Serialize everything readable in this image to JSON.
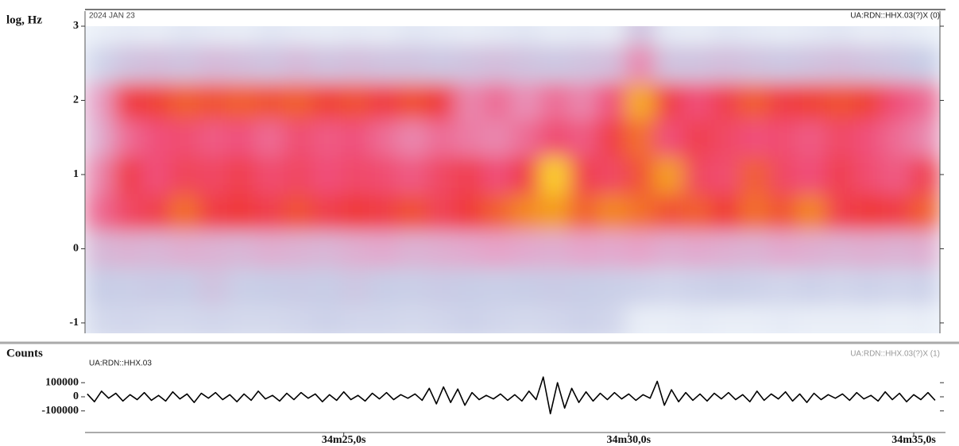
{
  "chart_data": [
    {
      "type": "heatmap",
      "y_label": "log, Hz",
      "date_label": "2024 JAN 23",
      "channel_label": "UA:RDN::HHX.03(?)X (0)",
      "xlim": [
        20.46,
        35.46
      ],
      "ylim": [
        -1.14,
        3
      ],
      "yticks": [
        3,
        2,
        1,
        0,
        -1
      ],
      "zlim": [
        0,
        1
      ],
      "colorscale": [
        [
          0,
          "#f4f9fd"
        ],
        [
          0.25,
          "#c8cde6"
        ],
        [
          0.45,
          "#e6a3c8"
        ],
        [
          0.6,
          "#f0507a"
        ],
        [
          0.75,
          "#f03a3a"
        ],
        [
          0.88,
          "#f5a020"
        ],
        [
          1,
          "#ffee30"
        ]
      ],
      "x": [
        20.71,
        21.21,
        21.71,
        22.21,
        22.71,
        23.21,
        23.71,
        24.21,
        24.71,
        25.21,
        25.71,
        26.21,
        26.71,
        27.21,
        27.71,
        28.21,
        28.71,
        29.21,
        29.71,
        30.21,
        30.71,
        31.21,
        31.71,
        32.21,
        32.71,
        33.21,
        33.71,
        34.21,
        34.71,
        35.21
      ],
      "y": [
        -1,
        -0.5,
        0,
        0.5,
        1,
        1.5,
        2,
        2.5,
        3
      ],
      "z": [
        [
          0.18,
          0.2,
          0.18,
          0.18,
          0.2,
          0.18,
          0.18,
          0.2,
          0.22,
          0.2,
          0.2,
          0.18,
          0.2,
          0.22,
          0.2,
          0.18,
          0.2,
          0.22,
          0.2,
          0.06,
          0.06,
          0.08,
          0.06,
          0.06,
          0.08,
          0.06,
          0.06,
          0.06,
          0.05,
          0.06
        ],
        [
          0.25,
          0.24,
          0.26,
          0.25,
          0.3,
          0.24,
          0.25,
          0.26,
          0.25,
          0.28,
          0.25,
          0.24,
          0.26,
          0.25,
          0.24,
          0.25,
          0.26,
          0.25,
          0.24,
          0.22,
          0.2,
          0.22,
          0.24,
          0.22,
          0.2,
          0.22,
          0.2,
          0.22,
          0.2,
          0.22
        ],
        [
          0.35,
          0.38,
          0.36,
          0.4,
          0.38,
          0.36,
          0.4,
          0.38,
          0.36,
          0.4,
          0.42,
          0.38,
          0.4,
          0.42,
          0.45,
          0.42,
          0.4,
          0.44,
          0.42,
          0.45,
          0.4,
          0.42,
          0.4,
          0.38,
          0.42,
          0.4,
          0.38,
          0.4,
          0.38,
          0.4
        ],
        [
          0.55,
          0.65,
          0.7,
          0.82,
          0.72,
          0.75,
          0.7,
          0.78,
          0.7,
          0.75,
          0.72,
          0.78,
          0.68,
          0.75,
          0.8,
          0.85,
          0.88,
          0.8,
          0.85,
          0.82,
          0.78,
          0.8,
          0.75,
          0.82,
          0.78,
          0.85,
          0.7,
          0.75,
          0.72,
          0.8
        ],
        [
          0.5,
          0.72,
          0.6,
          0.68,
          0.65,
          0.7,
          0.62,
          0.66,
          0.6,
          0.64,
          0.62,
          0.58,
          0.65,
          0.7,
          0.6,
          0.72,
          0.96,
          0.7,
          0.65,
          0.78,
          0.88,
          0.66,
          0.62,
          0.8,
          0.65,
          0.6,
          0.7,
          0.62,
          0.58,
          0.7
        ],
        [
          0.4,
          0.55,
          0.6,
          0.62,
          0.58,
          0.6,
          0.55,
          0.62,
          0.58,
          0.6,
          0.55,
          0.5,
          0.55,
          0.52,
          0.5,
          0.55,
          0.62,
          0.58,
          0.72,
          0.82,
          0.6,
          0.7,
          0.65,
          0.6,
          0.62,
          0.58,
          0.65,
          0.6,
          0.55,
          0.5
        ],
        [
          0.45,
          0.72,
          0.76,
          0.8,
          0.78,
          0.8,
          0.78,
          0.8,
          0.76,
          0.78,
          0.72,
          0.78,
          0.74,
          0.5,
          0.55,
          0.48,
          0.55,
          0.5,
          0.6,
          0.9,
          0.72,
          0.6,
          0.7,
          0.8,
          0.72,
          0.76,
          0.78,
          0.76,
          0.6,
          0.55
        ],
        [
          0.2,
          0.3,
          0.32,
          0.3,
          0.34,
          0.32,
          0.3,
          0.34,
          0.3,
          0.32,
          0.3,
          0.3,
          0.28,
          0.3,
          0.32,
          0.3,
          0.28,
          0.3,
          0.32,
          0.5,
          0.3,
          0.3,
          0.32,
          0.3,
          0.28,
          0.3,
          0.32,
          0.3,
          0.28,
          0.25
        ],
        [
          0.05,
          0.08,
          0.06,
          0.1,
          0.08,
          0.06,
          0.1,
          0.08,
          0.06,
          0.08,
          0.06,
          0.1,
          0.08,
          0.06,
          0.08,
          0.1,
          0.06,
          0.08,
          0.06,
          0.3,
          0.08,
          0.06,
          0.1,
          0.08,
          0.06,
          0.08,
          0.1,
          0.06,
          0.08,
          0.05
        ]
      ]
    },
    {
      "type": "line",
      "y_label": "Counts",
      "station_label": "UA:RDN::HHX.03",
      "channel_label": "UA:RDN::HHX.03(?)X (1)",
      "color": "#000000",
      "xlim": [
        20.46,
        35.46
      ],
      "ylim": [
        -180000,
        180000
      ],
      "yticks": [
        100000,
        0,
        -100000
      ],
      "xticks": [
        {
          "value": 25,
          "label": "34m25,0s"
        },
        {
          "value": 30,
          "label": "34m30,0s"
        },
        {
          "value": 35,
          "label": "34m35,0s"
        }
      ],
      "x": [
        20.5,
        20.625,
        20.75,
        20.875,
        21,
        21.125,
        21.25,
        21.375,
        21.5,
        21.625,
        21.75,
        21.875,
        22,
        22.125,
        22.25,
        22.375,
        22.5,
        22.625,
        22.75,
        22.875,
        23,
        23.125,
        23.25,
        23.375,
        23.5,
        23.625,
        23.75,
        23.875,
        24,
        24.125,
        24.25,
        24.375,
        24.5,
        24.625,
        24.75,
        24.875,
        25,
        25.125,
        25.25,
        25.375,
        25.5,
        25.625,
        25.75,
        25.875,
        26,
        26.125,
        26.25,
        26.375,
        26.5,
        26.625,
        26.75,
        26.875,
        27,
        27.125,
        27.25,
        27.375,
        27.5,
        27.625,
        27.75,
        27.875,
        28,
        28.125,
        28.25,
        28.375,
        28.5,
        28.625,
        28.75,
        28.875,
        29,
        29.125,
        29.25,
        29.375,
        29.5,
        29.625,
        29.75,
        29.875,
        30,
        30.125,
        30.25,
        30.375,
        30.5,
        30.625,
        30.75,
        30.875,
        31,
        31.125,
        31.25,
        31.375,
        31.5,
        31.625,
        31.75,
        31.875,
        32,
        32.125,
        32.25,
        32.375,
        32.5,
        32.625,
        32.75,
        32.875,
        33,
        33.125,
        33.25,
        33.375,
        33.5,
        33.625,
        33.75,
        33.875,
        34,
        34.125,
        34.25,
        34.375,
        34.5,
        34.625,
        34.75,
        34.875,
        35,
        35.125,
        35.25,
        35.375
      ],
      "values": [
        20000,
        -35000,
        40000,
        -10000,
        25000,
        -30000,
        15000,
        -20000,
        30000,
        -25000,
        10000,
        -30000,
        35000,
        -15000,
        20000,
        -40000,
        25000,
        -10000,
        30000,
        -20000,
        15000,
        -35000,
        20000,
        -25000,
        40000,
        -15000,
        10000,
        -30000,
        25000,
        -20000,
        30000,
        -10000,
        20000,
        -35000,
        15000,
        -25000,
        35000,
        -20000,
        10000,
        -30000,
        25000,
        -15000,
        30000,
        -20000,
        15000,
        -10000,
        20000,
        -25000,
        60000,
        -50000,
        70000,
        -40000,
        55000,
        -60000,
        30000,
        -20000,
        10000,
        -15000,
        20000,
        -25000,
        15000,
        -30000,
        40000,
        -20000,
        140000,
        -120000,
        100000,
        -80000,
        60000,
        -40000,
        35000,
        -30000,
        25000,
        -20000,
        30000,
        -15000,
        20000,
        -25000,
        15000,
        -10000,
        110000,
        -60000,
        50000,
        -35000,
        30000,
        -25000,
        20000,
        -30000,
        25000,
        -15000,
        30000,
        -20000,
        15000,
        -35000,
        40000,
        -25000,
        20000,
        -15000,
        35000,
        -30000,
        20000,
        -40000,
        25000,
        -20000,
        15000,
        -10000,
        20000,
        -25000,
        30000,
        -15000,
        10000,
        -30000,
        35000,
        -20000,
        25000,
        -35000,
        15000,
        -20000,
        30000,
        -25000
      ]
    }
  ]
}
